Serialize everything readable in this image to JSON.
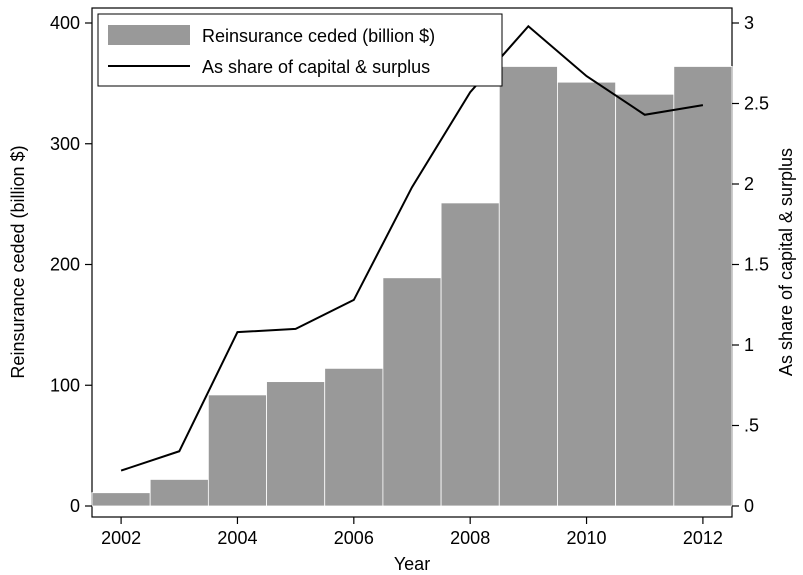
{
  "chart_data": {
    "type": "bar",
    "xlabel": "Year",
    "ylabel_left": "Reinsurance ceded (billion $)",
    "ylabel_right": "As share of capital & surplus",
    "x_ticks": [
      "2002",
      "2004",
      "2006",
      "2008",
      "2010",
      "2012"
    ],
    "y_left_ticks": [
      "0",
      "100",
      "200",
      "300",
      "400"
    ],
    "y_right_ticks": [
      "0",
      ".5",
      "1",
      "1.5",
      "2",
      "2.5",
      "3"
    ],
    "xlim": [
      2001.5,
      2012.5
    ],
    "ylim_left": [
      0,
      400
    ],
    "ylim_right": [
      0,
      3
    ],
    "grid": false,
    "legend_position": "top-left",
    "categories": [
      2002,
      2003,
      2004,
      2005,
      2006,
      2007,
      2008,
      2009,
      2010,
      2011,
      2012
    ],
    "series": [
      {
        "name": "Reinsurance ceded (billion $)",
        "type": "bar",
        "axis": "left",
        "color": "#999999",
        "values": [
          11,
          22,
          92,
          103,
          114,
          189,
          251,
          364,
          351,
          341,
          364
        ]
      },
      {
        "name": "As share of capital & surplus",
        "type": "line",
        "axis": "right",
        "color": "#000000",
        "values": [
          0.22,
          0.34,
          1.08,
          1.1,
          1.28,
          1.98,
          2.57,
          2.98,
          2.67,
          2.43,
          2.49
        ]
      }
    ]
  }
}
